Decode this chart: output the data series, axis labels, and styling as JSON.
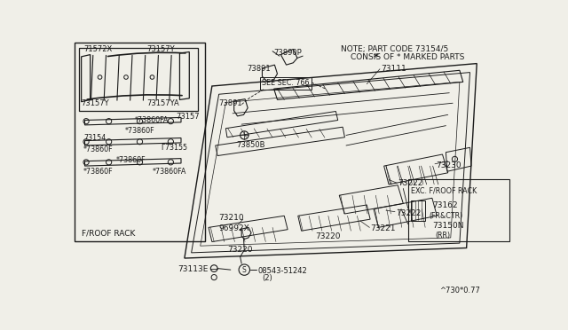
{
  "bg_color": "#f0efe8",
  "line_color": "#1a1a1a",
  "figure_code": "^730*0.77",
  "note_line1": "NOTE; PART CODE 73154/5",
  "note_line2": "CONSIS OF * MARKED PARTS",
  "exc_box_parts": [
    "EXC. F/ROOF RACK",
    "73162",
    "(FR&CTR)",
    "73150N",
    "(RR)"
  ],
  "froof_label": "F/ROOF RACK"
}
